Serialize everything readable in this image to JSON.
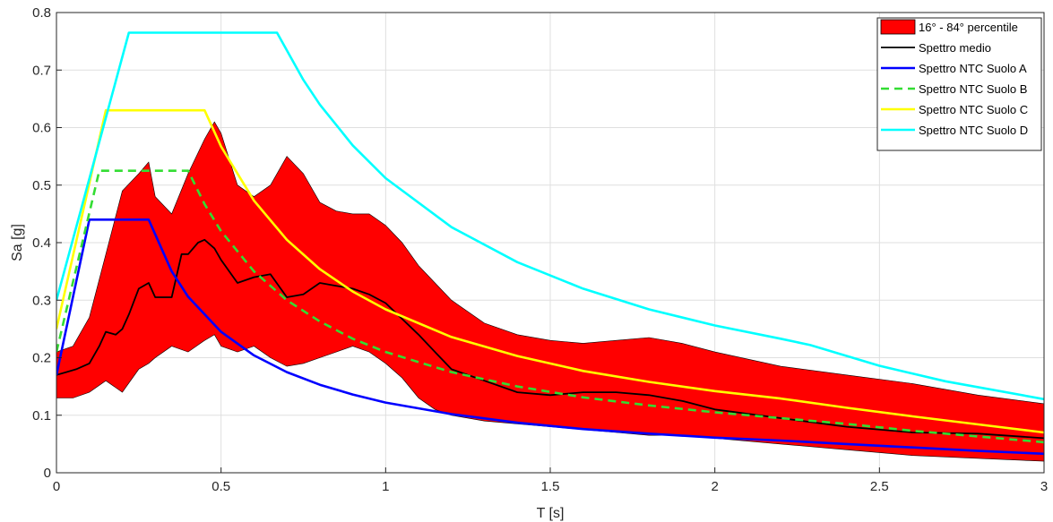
{
  "chart_data": {
    "type": "line",
    "xlabel": "T [s]",
    "ylabel": "Sa [g]",
    "xlim": [
      0,
      3
    ],
    "ylim": [
      0,
      0.8
    ],
    "xticks": [
      "0",
      "0.5",
      "1",
      "1.5",
      "2",
      "2.5",
      "3"
    ],
    "yticks": [
      "0",
      "0.1",
      "0.2",
      "0.3",
      "0.4",
      "0.5",
      "0.6",
      "0.7",
      "0.8"
    ],
    "grid": true,
    "legend_position": "top-right",
    "band": {
      "name": "16° - 84° percentile",
      "color": "#ff0000",
      "x": [
        0,
        0.05,
        0.1,
        0.15,
        0.2,
        0.25,
        0.28,
        0.3,
        0.35,
        0.4,
        0.45,
        0.48,
        0.5,
        0.55,
        0.6,
        0.65,
        0.7,
        0.75,
        0.8,
        0.85,
        0.9,
        0.95,
        1.0,
        1.05,
        1.1,
        1.15,
        1.2,
        1.3,
        1.4,
        1.5,
        1.6,
        1.7,
        1.8,
        1.9,
        2.0,
        2.2,
        2.4,
        2.6,
        2.8,
        3.0
      ],
      "upper": [
        0.21,
        0.22,
        0.27,
        0.38,
        0.49,
        0.52,
        0.54,
        0.48,
        0.45,
        0.52,
        0.58,
        0.61,
        0.59,
        0.5,
        0.48,
        0.5,
        0.55,
        0.52,
        0.47,
        0.455,
        0.45,
        0.45,
        0.43,
        0.4,
        0.36,
        0.33,
        0.3,
        0.26,
        0.24,
        0.23,
        0.225,
        0.23,
        0.235,
        0.225,
        0.21,
        0.185,
        0.17,
        0.155,
        0.135,
        0.12
      ],
      "lower": [
        0.13,
        0.13,
        0.14,
        0.16,
        0.14,
        0.18,
        0.19,
        0.2,
        0.22,
        0.21,
        0.23,
        0.24,
        0.22,
        0.21,
        0.22,
        0.2,
        0.185,
        0.19,
        0.2,
        0.21,
        0.22,
        0.21,
        0.19,
        0.165,
        0.13,
        0.11,
        0.1,
        0.09,
        0.085,
        0.08,
        0.075,
        0.07,
        0.065,
        0.065,
        0.06,
        0.05,
        0.04,
        0.03,
        0.025,
        0.02
      ]
    },
    "series": [
      {
        "name": "Spettro medio",
        "color": "#000000",
        "dash": "solid",
        "x": [
          0,
          0.03,
          0.06,
          0.1,
          0.13,
          0.15,
          0.18,
          0.2,
          0.22,
          0.25,
          0.28,
          0.3,
          0.35,
          0.38,
          0.4,
          0.43,
          0.45,
          0.48,
          0.5,
          0.55,
          0.6,
          0.65,
          0.7,
          0.75,
          0.8,
          0.85,
          0.9,
          0.95,
          1.0,
          1.1,
          1.15,
          1.2,
          1.3,
          1.4,
          1.5,
          1.6,
          1.7,
          1.8,
          1.9,
          2.0,
          2.2,
          2.4,
          2.6,
          2.8,
          3.0
        ],
        "y": [
          0.17,
          0.175,
          0.18,
          0.19,
          0.22,
          0.245,
          0.24,
          0.25,
          0.275,
          0.32,
          0.33,
          0.305,
          0.305,
          0.38,
          0.38,
          0.4,
          0.405,
          0.39,
          0.37,
          0.33,
          0.34,
          0.345,
          0.305,
          0.31,
          0.33,
          0.325,
          0.32,
          0.31,
          0.295,
          0.24,
          0.21,
          0.18,
          0.16,
          0.14,
          0.135,
          0.14,
          0.14,
          0.135,
          0.125,
          0.11,
          0.095,
          0.08,
          0.07,
          0.068,
          0.06
        ]
      },
      {
        "name": "Spettro NTC Suolo A",
        "color": "#0000ff",
        "dash": "solid",
        "x": [
          0,
          0.1,
          0.28,
          0.35,
          0.4,
          0.5,
          0.6,
          0.7,
          0.8,
          0.9,
          1.0,
          1.2,
          1.4,
          1.6,
          1.8,
          2.0,
          2.2,
          2.4,
          2.6,
          2.8,
          3.0
        ],
        "y": [
          0.17,
          0.44,
          0.44,
          0.35,
          0.306,
          0.245,
          0.204,
          0.175,
          0.153,
          0.136,
          0.122,
          0.102,
          0.087,
          0.076,
          0.068,
          0.061,
          0.056,
          0.05,
          0.044,
          0.038,
          0.033
        ]
      },
      {
        "name": "Spettro NTC Suolo B",
        "color": "#33dd33",
        "dash": "dashed",
        "x": [
          0,
          0.13,
          0.4,
          0.45,
          0.5,
          0.6,
          0.7,
          0.8,
          0.9,
          1.0,
          1.2,
          1.4,
          1.6,
          1.8,
          2.0,
          2.2,
          2.4,
          2.6,
          2.8,
          3.0
        ],
        "y": [
          0.21,
          0.525,
          0.525,
          0.467,
          0.42,
          0.35,
          0.3,
          0.263,
          0.233,
          0.21,
          0.175,
          0.15,
          0.131,
          0.117,
          0.105,
          0.095,
          0.085,
          0.073,
          0.063,
          0.053
        ]
      },
      {
        "name": "Spettro NTC Suolo C",
        "color": "#ffff00",
        "dash": "solid",
        "x": [
          0,
          0.15,
          0.45,
          0.5,
          0.6,
          0.7,
          0.8,
          0.9,
          1.0,
          1.2,
          1.4,
          1.6,
          1.8,
          2.0,
          2.2,
          2.4,
          2.6,
          2.8,
          3.0
        ],
        "y": [
          0.25,
          0.63,
          0.63,
          0.567,
          0.473,
          0.405,
          0.354,
          0.315,
          0.284,
          0.236,
          0.203,
          0.177,
          0.158,
          0.142,
          0.129,
          0.113,
          0.098,
          0.084,
          0.07
        ]
      },
      {
        "name": "Spettro NTC Suolo D",
        "color": "#00ffff",
        "dash": "solid",
        "x": [
          0,
          0.22,
          0.67,
          0.75,
          0.8,
          0.9,
          1.0,
          1.2,
          1.4,
          1.6,
          1.8,
          2.0,
          2.2,
          2.29,
          2.5,
          2.7,
          3.0
        ],
        "y": [
          0.3,
          0.765,
          0.765,
          0.683,
          0.64,
          0.569,
          0.512,
          0.427,
          0.366,
          0.32,
          0.284,
          0.256,
          0.233,
          0.222,
          0.186,
          0.159,
          0.128
        ]
      }
    ]
  }
}
